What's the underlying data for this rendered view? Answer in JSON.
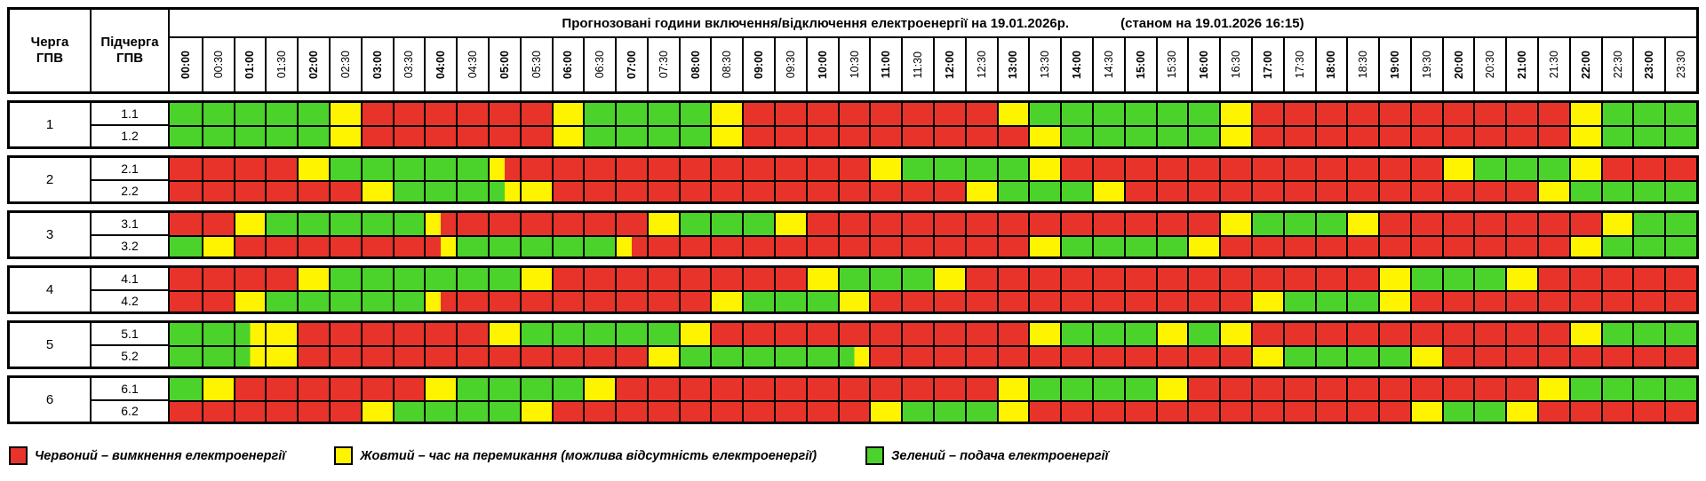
{
  "header": {
    "title": "Прогнозовані години включення/відключення електроенергії на 19.01.2026р.",
    "status": "(станом на 19.01.2026 16:15)",
    "col1": "Черга\nГПВ",
    "col2": "Підчерга\nГПВ"
  },
  "times": [
    "00:00",
    "00:30",
    "01:00",
    "01:30",
    "02:00",
    "02:30",
    "03:00",
    "03:30",
    "04:00",
    "04:30",
    "05:00",
    "05:30",
    "06:00",
    "06:30",
    "07:00",
    "07:30",
    "08:00",
    "08:30",
    "09:00",
    "09:30",
    "10:00",
    "10:30",
    "11:00",
    "11:30",
    "12:00",
    "12:30",
    "13:00",
    "13:30",
    "14:00",
    "14:30",
    "15:00",
    "15:30",
    "16:00",
    "16:30",
    "17:00",
    "17:30",
    "18:00",
    "18:30",
    "19:00",
    "19:30",
    "20:00",
    "20:30",
    "21:00",
    "21:30",
    "22:00",
    "22:30",
    "23:00",
    "23:30"
  ],
  "colors": {
    "R": "#E8332B",
    "Y": "#FEF400",
    "G": "#4BD32B"
  },
  "color_meanings": {
    "R": "вимкнення",
    "Y": "перемикання",
    "G": "подача"
  },
  "groups": [
    {
      "queue": "1",
      "rows": [
        {
          "label": "1.1",
          "cells": "G G G G G Y R R R R R R Y G G G G Y R R R R R R R R Y G G G G G G Y R R R R R R R R R R Y G G G"
        },
        {
          "label": "1.2",
          "cells": "G G G G G Y R R R R R R Y G G G G Y R R R R R R R R R Y G G G G G Y R R R R R R R R R R Y G G G"
        }
      ]
    },
    {
      "queue": "2",
      "rows": [
        {
          "label": "2.1",
          "cells": "R R R R Y G G G G G YR R R R R R R R R R R R Y G G G G Y R R R R R R R R R R R R Y G G G Y R R R"
        },
        {
          "label": "2.2",
          "cells": "R R R R R R Y G G G GY Y R R R R R R R R R R R R R Y G G G Y R R R R R R R R R R R R R Y G G G G"
        }
      ]
    },
    {
      "queue": "3",
      "rows": [
        {
          "label": "3.1",
          "cells": "R R Y G G G G G YR R R R R R R Y G G G Y R R R R R R R R R R R R R Y G G G Y R R R R R R R Y G G"
        },
        {
          "label": "3.2",
          "cells": "G Y R R R R R R RY G G G G G YR R R R R R R R R R R R R Y G G G G Y R R R R R R R R R R R Y G G G"
        }
      ]
    },
    {
      "queue": "4",
      "rows": [
        {
          "label": "4.1",
          "cells": "R R R R Y G G G G G G Y R R R R R R R R Y G G G Y R R R R R R R R R R R R R Y G G G Y R R R R R"
        },
        {
          "label": "4.2",
          "cells": "R R Y G G G G G YR R R R R R R R R Y G G G Y R R R R R R R R R R R R Y G G G Y R R R R R R R R R"
        }
      ]
    },
    {
      "queue": "5",
      "rows": [
        {
          "label": "5.1",
          "cells": "G G GY Y R R R R R R Y G G G G G Y R R R R R R R R R R Y G G G Y G Y R R R R R R R R R R Y G G G"
        },
        {
          "label": "5.2",
          "cells": "G G GY Y R R R R R R R R R R R Y G G G G G GY R R R R R R R R R R R R Y G G G G Y R R R R R R R R"
        }
      ]
    },
    {
      "queue": "6",
      "rows": [
        {
          "label": "6.1",
          "cells": "G Y R R R R R R Y G G G G Y R R R R R R R R R R R R Y G G G G Y R R R R R R R R R R R Y G G G G"
        },
        {
          "label": "6.2",
          "cells": "R R R R R R Y G G G G Y R R R R R R R R R R Y G G G Y R R R R R R R R R R R R Y G G Y R R R R R"
        }
      ]
    }
  ],
  "legend": [
    {
      "color": "R",
      "text": "Червоний – вимкнення електроенергії"
    },
    {
      "color": "Y",
      "text": "Жовтий – час на перемикання (можлива відсутність електроенергії)"
    },
    {
      "color": "G",
      "text": "Зелений – подача електроенергії"
    }
  ]
}
